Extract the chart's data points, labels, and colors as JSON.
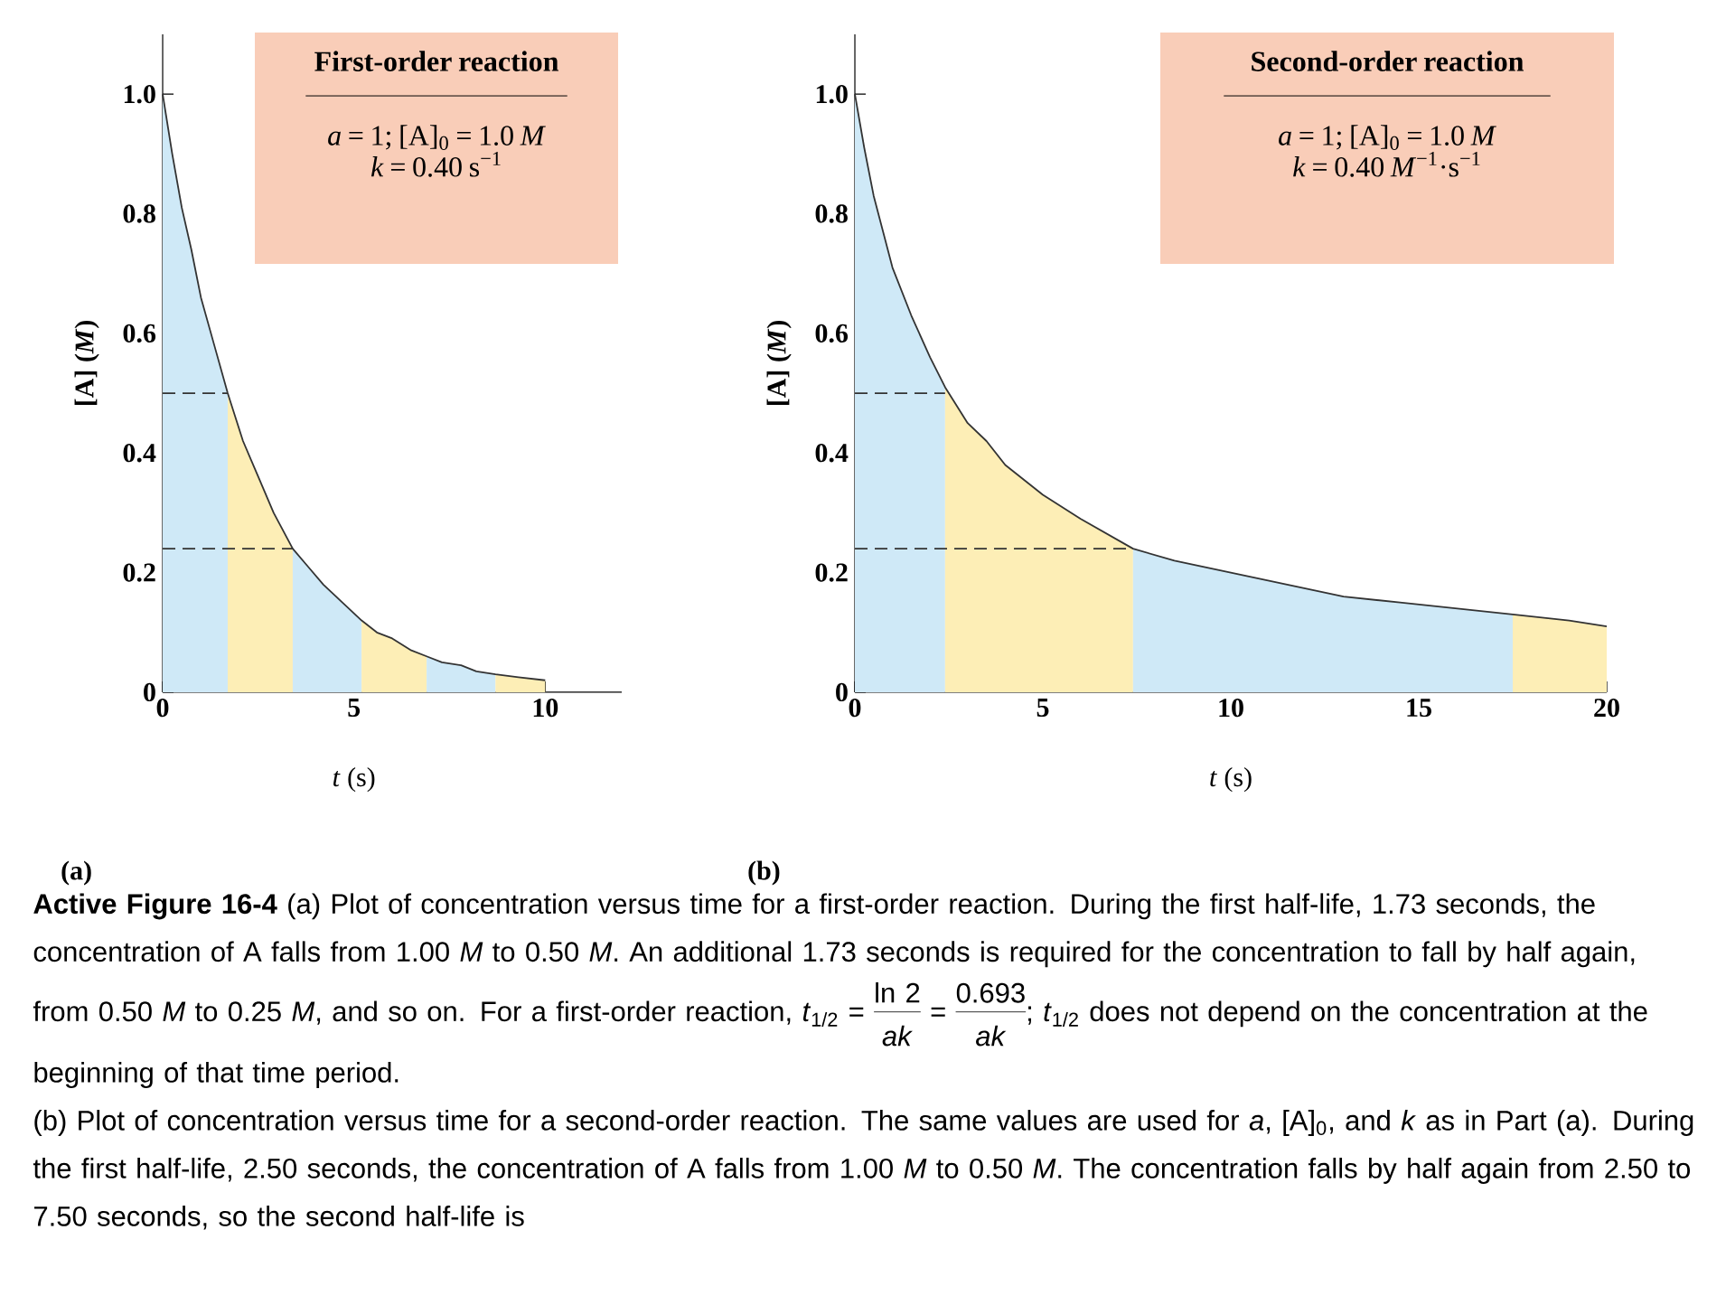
{
  "chart_data": [
    {
      "type": "area",
      "title": "First-order reaction",
      "xlabel": "*t* (s)",
      "ylabel": "[A]  (*M*)",
      "xlim": [
        0,
        12
      ],
      "ylim": [
        0,
        1.1
      ],
      "xticks": [
        0,
        5,
        10
      ],
      "yticks": [
        0,
        0.2,
        0.4,
        0.6,
        0.8,
        {
          "value": 1,
          "label": "1.0"
        }
      ],
      "series": [
        {
          "type": "area",
          "color": "#cfe9f7",
          "x": [
            0,
            0.25,
            0.5,
            0.75,
            1,
            1.35,
            1.7
          ],
          "values": [
            1.0,
            0.9,
            0.81,
            0.74,
            0.66,
            0.58,
            0.5
          ]
        },
        {
          "type": "area",
          "color": "#fdeeb6",
          "x": [
            1.7,
            2.1,
            2.5,
            2.9,
            3.4
          ],
          "values": [
            0.5,
            0.42,
            0.36,
            0.3,
            0.24
          ]
        },
        {
          "type": "area",
          "color": "#cfe9f7",
          "x": [
            3.4,
            3.8,
            4.2,
            4.7,
            5.2
          ],
          "values": [
            0.24,
            0.21,
            0.18,
            0.15,
            0.12
          ]
        },
        {
          "type": "area",
          "color": "#fdeeb6",
          "x": [
            5.2,
            5.6,
            6,
            6.5,
            6.9
          ],
          "values": [
            0.12,
            0.1,
            0.09,
            0.07,
            0.06
          ]
        },
        {
          "type": "area",
          "color": "#cfe9f7",
          "x": [
            6.9,
            7.3,
            7.8,
            8.2,
            8.7
          ],
          "values": [
            0.06,
            0.05,
            0.045,
            0.035,
            0.03
          ]
        },
        {
          "type": "area",
          "color": "#fdeeb6",
          "x": [
            8.7,
            9.3,
            10
          ],
          "values": [
            0.03,
            0.025,
            0.02
          ]
        },
        {
          "type": "line",
          "line_style": "dashed",
          "color": "#333333",
          "x": [
            0,
            1.7
          ],
          "values": [
            0.5,
            0.5
          ]
        },
        {
          "type": "line",
          "line_style": "dashed",
          "color": "#333333",
          "x": [
            0,
            3.4
          ],
          "values": [
            0.24,
            0.24
          ]
        },
        {
          "type": "line",
          "line_style": "solid",
          "color": "#333333",
          "x": [
            0,
            0.25,
            0.5,
            0.75,
            1,
            1.35,
            1.7,
            2.1,
            2.5,
            2.9,
            3.4,
            3.8,
            4.2,
            4.7,
            5.2,
            5.6,
            6,
            6.5,
            6.9,
            7.3,
            7.8,
            8.2,
            8.7,
            9.3,
            10
          ],
          "values": [
            1.0,
            0.9,
            0.81,
            0.74,
            0.66,
            0.58,
            0.5,
            0.42,
            0.36,
            0.3,
            0.24,
            0.21,
            0.18,
            0.15,
            0.12,
            0.1,
            0.09,
            0.07,
            0.06,
            0.05,
            0.045,
            0.035,
            0.03,
            0.025,
            0.02
          ]
        }
      ],
      "annotations": [
        "*a* = 1; [A]$_{0}$ = 1.0 *M*",
        "*k* = 0.40 s$^{−1}$",
        "(a)",
        "**Active Figure 16-4**  (a) Plot of concentration versus time for a first-order reaction. During the first half-life, 1.73 seconds, the concentration of A falls from 1.00 *M* to 0.50 *M*. An additional 1.73 seconds is required for the concentration to fall by half again, from 0.50 *M* to 0.25 *M*, and so on. For a first-order reaction,",
        "*t*$_{1/2}$ =",
        "ln 2",
        "*ak*",
        "=",
        "0.693",
        "*ak*",
        "; *t*$_{1/2}$ does not depend on the concentration at the beginning of that time period.",
        "(b)  Plot of concentration versus time for a second-order reaction. The same values are used for *a*, [A]$_{0}$, and *k* as in Part (a). During the first half-life, 2.50 seconds, the concentration of A falls from 1.00 *M* to 0.50 *M*. The concentration falls by half again from 2.50 to 7.50 seconds, so the second half-life is"
      ]
    },
    {
      "type": "area",
      "title": "Second-order reaction",
      "xlabel": "*t* (s)",
      "ylabel": "[A]  (*M*)",
      "xlim": [
        0,
        20
      ],
      "ylim": [
        0,
        1.1
      ],
      "xticks": [
        0,
        5,
        10,
        15,
        20
      ],
      "yticks": [
        0,
        0.2,
        0.4,
        0.6,
        0.8,
        {
          "value": 1,
          "label": "1.0"
        }
      ],
      "series": [
        {
          "type": "area",
          "color": "#cfe9f7",
          "x": [
            0,
            0.25,
            0.5,
            1,
            1.5,
            2,
            2.4
          ],
          "values": [
            1.0,
            0.91,
            0.83,
            0.71,
            0.63,
            0.56,
            0.51
          ]
        },
        {
          "type": "area",
          "color": "#fdeeb6",
          "x": [
            2.4,
            3,
            3.5,
            4,
            5,
            6,
            7.4
          ],
          "values": [
            0.51,
            0.45,
            0.42,
            0.38,
            0.33,
            0.29,
            0.24
          ]
        },
        {
          "type": "area",
          "color": "#cfe9f7",
          "x": [
            7.4,
            8.5,
            10,
            11.5,
            13,
            14.5,
            16,
            17.5
          ],
          "values": [
            0.24,
            0.22,
            0.2,
            0.18,
            0.16,
            0.15,
            0.14,
            0.13
          ]
        },
        {
          "type": "area",
          "color": "#fdeeb6",
          "x": [
            17.5,
            19,
            20
          ],
          "values": [
            0.13,
            0.12,
            0.11
          ]
        },
        {
          "type": "line",
          "line_style": "dashed",
          "color": "#333333",
          "x": [
            0,
            2.4
          ],
          "values": [
            0.5,
            0.5
          ]
        },
        {
          "type": "line",
          "line_style": "dashed",
          "color": "#333333",
          "x": [
            0,
            7.4
          ],
          "values": [
            0.24,
            0.24
          ]
        },
        {
          "type": "line",
          "line_style": "solid",
          "color": "#333333",
          "x": [
            0,
            0.25,
            0.5,
            1,
            1.5,
            2,
            2.4,
            3,
            3.5,
            4,
            5,
            6,
            7.4,
            8.5,
            10,
            11.5,
            13,
            14.5,
            16,
            17.5,
            19,
            20
          ],
          "values": [
            1.0,
            0.91,
            0.83,
            0.71,
            0.63,
            0.56,
            0.51,
            0.45,
            0.42,
            0.38,
            0.33,
            0.29,
            0.24,
            0.22,
            0.2,
            0.18,
            0.16,
            0.15,
            0.14,
            0.13,
            0.12,
            0.11
          ]
        }
      ],
      "annotations": [
        "*a* = 1; [A]$_{0}$ = 1.0 *M*",
        "*k* = 0.40 *M*$^{−1}$·s$^{−1}$",
        "(b)"
      ]
    }
  ]
}
